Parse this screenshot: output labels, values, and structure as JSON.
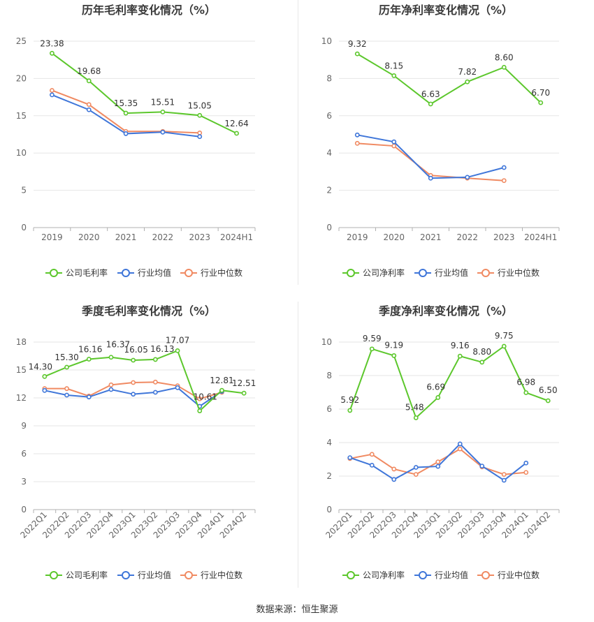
{
  "colors": {
    "company": "#5cc72c",
    "industry_avg": "#3f76d9",
    "industry_median": "#f08a62"
  },
  "source_text": "数据来源：恒生聚源",
  "chart_data": [
    {
      "type": "line",
      "title": "历年毛利率变化情况（%）",
      "categories": [
        "2019",
        "2020",
        "2021",
        "2022",
        "2023",
        "2024H1"
      ],
      "ylim": [
        0,
        25
      ],
      "yticks": [
        "0",
        "5",
        "10",
        "15",
        "20",
        "25"
      ],
      "grid": true,
      "legend_position": "bottom",
      "series": [
        {
          "name": "公司毛利率",
          "values": [
            23.38,
            19.68,
            15.35,
            15.51,
            15.05,
            12.64
          ],
          "labels": [
            "23.38",
            "19.68",
            "15.35",
            "15.51",
            "15.05",
            "12.64"
          ]
        },
        {
          "name": "行业均值",
          "values": [
            17.8,
            15.8,
            12.6,
            12.8,
            12.2,
            null
          ]
        },
        {
          "name": "行业中位数",
          "values": [
            18.4,
            16.5,
            12.9,
            12.9,
            12.7,
            null
          ]
        }
      ]
    },
    {
      "type": "line",
      "title": "历年净利率变化情况（%）",
      "categories": [
        "2019",
        "2020",
        "2021",
        "2022",
        "2023",
        "2024H1"
      ],
      "ylim": [
        0,
        10
      ],
      "yticks": [
        "0",
        "2",
        "4",
        "6",
        "8",
        "10"
      ],
      "grid": true,
      "legend_position": "bottom",
      "series": [
        {
          "name": "公司净利率",
          "values": [
            9.32,
            8.15,
            6.63,
            7.82,
            8.6,
            6.7
          ],
          "labels": [
            "9.32",
            "8.15",
            "6.63",
            "7.82",
            "8.60",
            "6.70"
          ]
        },
        {
          "name": "行业均值",
          "values": [
            4.97,
            4.6,
            2.65,
            2.7,
            3.22,
            null
          ]
        },
        {
          "name": "行业中位数",
          "values": [
            4.52,
            4.38,
            2.8,
            2.65,
            2.52,
            null
          ]
        }
      ]
    },
    {
      "type": "line",
      "title": "季度毛利率变化情况（%）",
      "categories": [
        "2022Q1",
        "2022Q2",
        "2022Q3",
        "2022Q4",
        "2023Q1",
        "2023Q2",
        "2023Q3",
        "2023Q4",
        "2024Q1",
        "2024Q2"
      ],
      "ylim": [
        0,
        18
      ],
      "yticks": [
        "0",
        "3",
        "6",
        "9",
        "12",
        "15",
        "18"
      ],
      "grid": true,
      "rotated_xlabels": true,
      "legend_position": "bottom",
      "series": [
        {
          "name": "公司毛利率",
          "values": [
            14.3,
            15.3,
            16.16,
            16.37,
            16.05,
            16.13,
            17.07,
            10.61,
            12.81,
            12.51
          ],
          "labels": [
            "14.30",
            "15.30",
            "16.16",
            "16.37",
            "16.05",
            "16.13",
            "17.07",
            "10.61",
            "12.81",
            "12.51"
          ]
        },
        {
          "name": "行业均值",
          "values": [
            12.8,
            12.3,
            12.1,
            12.9,
            12.4,
            12.6,
            13.1,
            11.1,
            12.7,
            null
          ]
        },
        {
          "name": "行业中位数",
          "values": [
            13.0,
            13.0,
            12.2,
            13.4,
            13.65,
            13.7,
            13.3,
            11.9,
            12.6,
            null
          ]
        }
      ]
    },
    {
      "type": "line",
      "title": "季度净利率变化情况（%）",
      "categories": [
        "2022Q1",
        "2022Q2",
        "2022Q3",
        "2022Q4",
        "2023Q1",
        "2023Q2",
        "2023Q3",
        "2023Q4",
        "2024Q1",
        "2024Q2"
      ],
      "ylim": [
        0,
        10
      ],
      "yticks": [
        "0",
        "2",
        "4",
        "6",
        "8",
        "10"
      ],
      "grid": true,
      "rotated_xlabels": true,
      "legend_position": "bottom",
      "series": [
        {
          "name": "公司净利率",
          "values": [
            5.92,
            9.59,
            9.19,
            5.48,
            6.69,
            9.16,
            8.8,
            9.75,
            6.98,
            6.5
          ],
          "labels": [
            "5.92",
            "9.59",
            "9.19",
            "5.48",
            "6.69",
            "9.16",
            "8.80",
            "9.75",
            "6.98",
            "6.50"
          ]
        },
        {
          "name": "行业均值",
          "values": [
            3.1,
            2.65,
            1.8,
            2.52,
            2.58,
            3.92,
            2.6,
            1.75,
            2.78,
            null
          ]
        },
        {
          "name": "行业中位数",
          "values": [
            3.05,
            3.3,
            2.42,
            2.1,
            2.85,
            3.62,
            2.55,
            2.1,
            2.22,
            null
          ]
        }
      ]
    }
  ]
}
